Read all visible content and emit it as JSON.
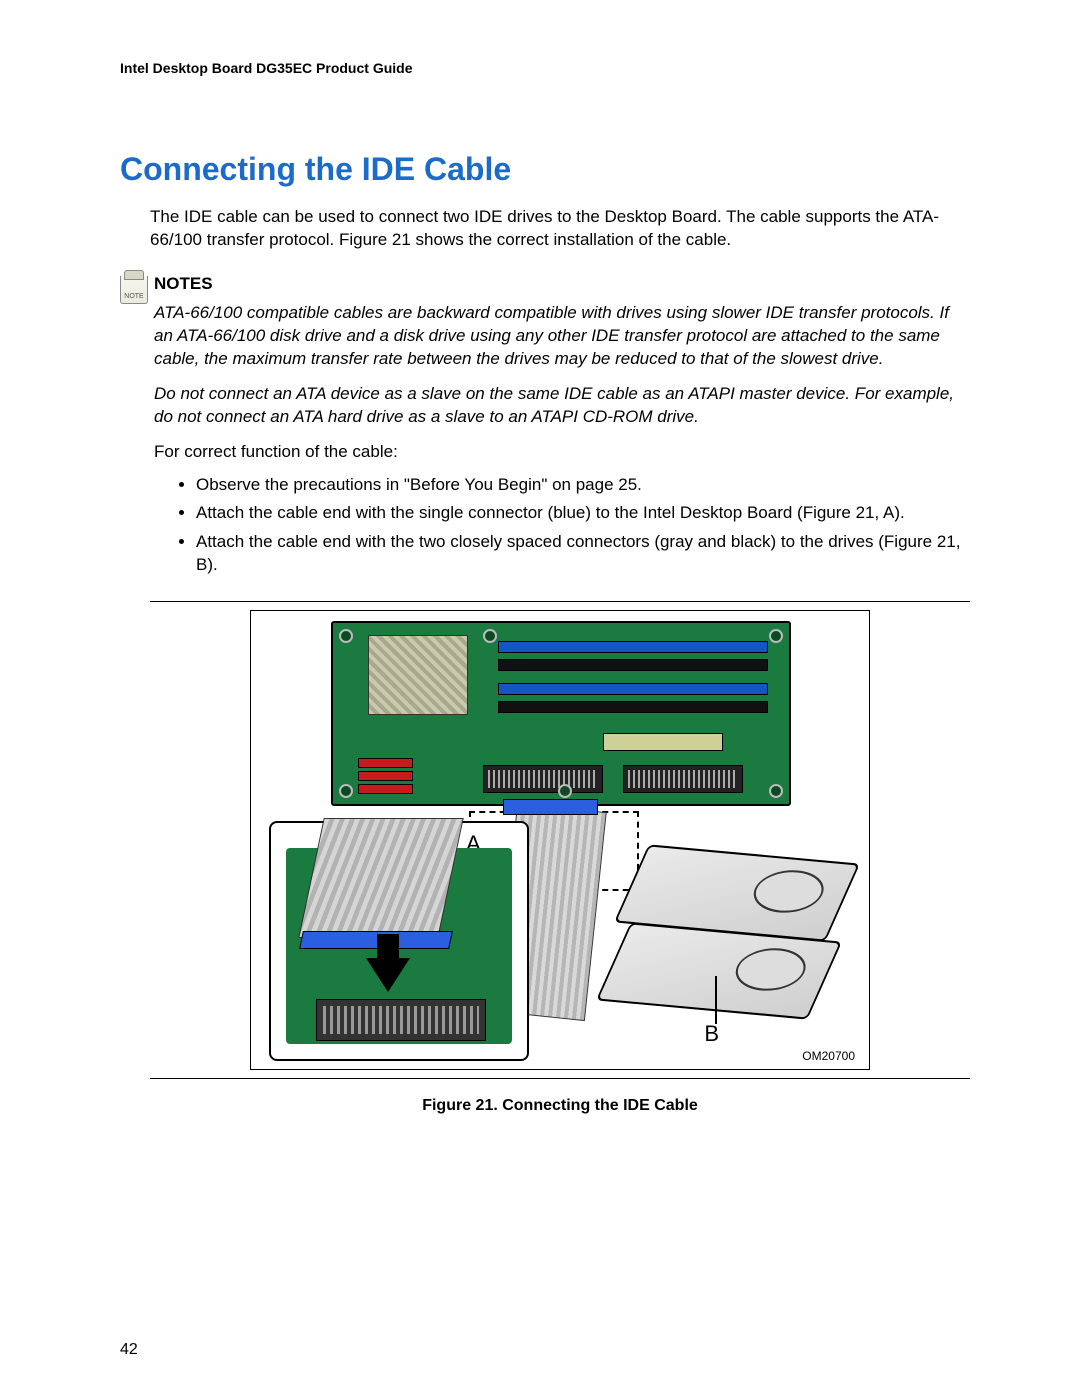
{
  "header": "Intel Desktop Board DG35EC Product Guide",
  "title": "Connecting the IDE Cable",
  "intro": "The IDE cable can be used to connect two IDE drives to the Desktop Board.  The cable supports the ATA-66/100 transfer protocol.  Figure 21 shows the correct installation of the cable.",
  "notes_heading": "NOTES",
  "note1": "ATA-66/100 compatible cables are backward compatible with drives using slower IDE transfer protocols.  If an ATA-66/100 disk drive and a disk drive using any other IDE transfer protocol are attached to the same cable, the maximum transfer rate between the drives may be reduced to that of the slowest drive.",
  "note2": "Do not connect an ATA device as a slave on the same IDE cable as an ATAPI master device.  For example, do not connect an ATA hard drive as a slave to an ATAPI CD-ROM drive.",
  "instr_lead": "For correct function of the cable:",
  "bullets": [
    "Observe the precautions in \"Before You Begin\" on page 25.",
    "Attach the cable end with the single connector (blue) to the Intel Desktop Board (Figure 21, A).",
    "Attach the cable end with the two closely spaced connectors (gray and black) to the drives (Figure 21, B)."
  ],
  "figure": {
    "label_a": "A",
    "label_b": "B",
    "om_tag": "OM20700",
    "caption": "Figure 21.  Connecting the IDE Cable",
    "colors": {
      "board_green": "#1a7a3f",
      "dimm_blue": "#1455c4",
      "sata_red": "#c81c1c",
      "cable_blue": "#2a5fe0",
      "ribbon_light": "#d5d5d5",
      "ribbon_dark": "#b2b2b2"
    }
  },
  "page_number": "42",
  "note_icon_text": "NOTE"
}
